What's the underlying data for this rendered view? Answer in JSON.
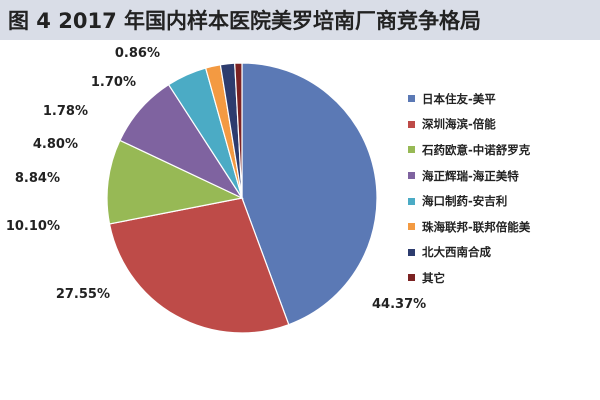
{
  "title": "图 4  2017 年国内样本医院美罗培南厂商竞争格局",
  "chart_data": {
    "type": "pie",
    "title": "图 4  2017 年国内样本医院美罗培南厂商竞争格局",
    "start": "12 o'clock",
    "direction": "clockwise",
    "legend_position": "right",
    "slices": [
      {
        "label": "日本住友-美平",
        "value": 44.37,
        "display": "44.37%",
        "color": "#5b79b5"
      },
      {
        "label": "深圳海滨-倍能",
        "value": 27.55,
        "display": "27.55%",
        "color": "#be4b48"
      },
      {
        "label": "石药欧意-中诺舒罗克",
        "value": 10.1,
        "display": "10.10%",
        "color": "#97b955"
      },
      {
        "label": "海正辉瑞-海正美特",
        "value": 8.84,
        "display": "8.84%",
        "color": "#7f63a0"
      },
      {
        "label": "海口制药-安吉利",
        "value": 4.8,
        "display": "4.80%",
        "color": "#4babc5"
      },
      {
        "label": "珠海联邦-联邦倍能美",
        "value": 1.78,
        "display": "1.78%",
        "color": "#f39a42"
      },
      {
        "label": "北大西南合成",
        "value": 1.7,
        "display": "1.70%",
        "color": "#2d3c6e"
      },
      {
        "label": "其它",
        "value": 0.86,
        "display": "0.86%",
        "color": "#7b2222"
      }
    ]
  }
}
